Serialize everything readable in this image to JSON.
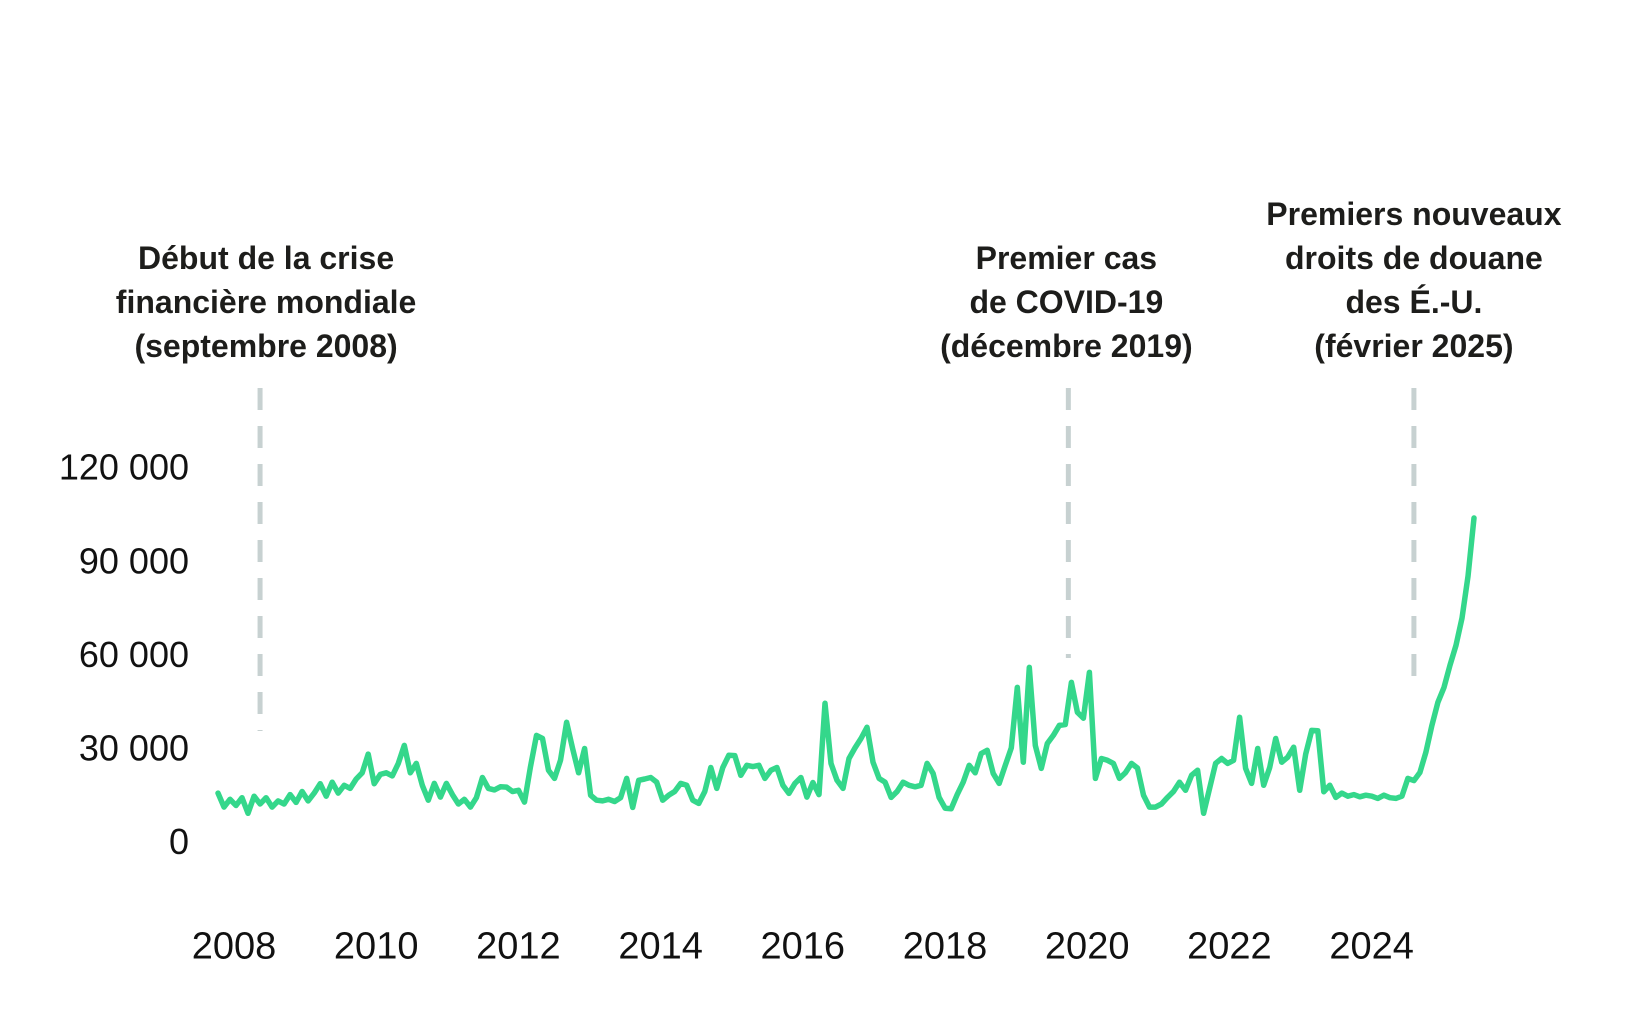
{
  "figure": {
    "background": "#ffffff",
    "line_color": "#34d78b",
    "dash_color": "#c7d1d1",
    "text_color": "#1d1d1b"
  },
  "chart_data": {
    "type": "line",
    "title": "",
    "frequency": "monthly",
    "x_start_year": 2008,
    "x_start_month": 1,
    "ylim": [
      0,
      130000
    ],
    "grid": false,
    "legend": "none",
    "line_color": "#34d78b",
    "dash_color": "#c7d1d1",
    "y_ticks": [
      {
        "value": 120000,
        "label": "120 000"
      },
      {
        "value": 90000,
        "label": "90 000"
      },
      {
        "value": 60000,
        "label": "60 000"
      },
      {
        "value": 30000,
        "label": "30 000"
      },
      {
        "value": 0,
        "label": "0"
      }
    ],
    "x_ticks": [
      {
        "year": 2008,
        "label": "2008"
      },
      {
        "year": 2010,
        "label": "2010"
      },
      {
        "year": 2012,
        "label": "2012"
      },
      {
        "year": 2014,
        "label": "2014"
      },
      {
        "year": 2016,
        "label": "2016"
      },
      {
        "year": 2018,
        "label": "2018"
      },
      {
        "year": 2020,
        "label": "2020"
      },
      {
        "year": 2022,
        "label": "2022"
      },
      {
        "year": 2024,
        "label": "2024"
      }
    ],
    "events": [
      {
        "id": "crise-financiere",
        "month_index": 7,
        "lines": [
          "Début de la crise",
          "financière mondiale",
          "(septembre 2008)"
        ]
      },
      {
        "id": "covid-19",
        "month_index": 141.5,
        "lines": [
          "Premier cas",
          "de COVID-19",
          "(décembre 2019)"
        ]
      },
      {
        "id": "droits-douane-eu",
        "month_index": 199,
        "lines": [
          "Premiers nouveaux",
          "droits de douane",
          "des É.-U.",
          "(février 2025)"
        ]
      }
    ],
    "values": [
      15500,
      11000,
      13500,
      11500,
      14000,
      9000,
      14500,
      12000,
      14000,
      11000,
      13000,
      12000,
      15000,
      12500,
      16000,
      13000,
      15500,
      18500,
      14500,
      19000,
      15500,
      18000,
      17000,
      20000,
      22000,
      28000,
      18500,
      21500,
      22000,
      21000,
      25000,
      30800,
      22000,
      25000,
      18000,
      13200,
      18600,
      14200,
      18600,
      15000,
      12000,
      13500,
      11000,
      14000,
      20500,
      17000,
      16500,
      17500,
      17400,
      16000,
      16400,
      12600,
      24000,
      34000,
      33000,
      22800,
      20200,
      26000,
      38200,
      29800,
      22000,
      29800,
      14800,
      13200,
      13000,
      13500,
      12800,
      14000,
      20200,
      10900,
      19600,
      20000,
      20500,
      19000,
      13200,
      14800,
      16000,
      18600,
      18000,
      13200,
      12200,
      16000,
      23700,
      17000,
      23700,
      27600,
      27500,
      21200,
      24400,
      24000,
      24400,
      20200,
      22800,
      23700,
      18000,
      15400,
      18600,
      20500,
      14200,
      18900,
      15000,
      44300,
      25000,
      19600,
      17000,
      26600,
      30000,
      33000,
      36600,
      25400,
      20200,
      19000,
      14100,
      16000,
      19000,
      18000,
      17500,
      18000,
      25000,
      21800,
      14100,
      10600,
      10500,
      15000,
      19000,
      24400,
      22000,
      28200,
      29200,
      21800,
      18600,
      24400,
      30000,
      49400,
      25400,
      55800,
      30800,
      23400,
      31400,
      34000,
      37200,
      37500,
      51000,
      41400,
      39500,
      54200,
      20200,
      26600,
      26000,
      25000,
      20200,
      22000,
      25000,
      23500,
      14800,
      11000,
      11000,
      12000,
      14100,
      16000,
      19000,
      16400,
      21200,
      22800,
      9000,
      17000,
      25000,
      26600,
      25000,
      26000,
      39800,
      23400,
      18600,
      29800,
      18000,
      23700,
      33000,
      25400,
      27000,
      30200,
      16400,
      28000,
      35600,
      35500,
      15900,
      18000,
      14100,
      15500,
      14500,
      15000,
      14300,
      14800,
      14500,
      13800,
      14800,
      14000,
      13800,
      14500,
      20200,
      19500,
      22100,
      28600,
      37200,
      44600,
      49400,
      56500,
      62900,
      71600,
      85000,
      103700
    ]
  }
}
